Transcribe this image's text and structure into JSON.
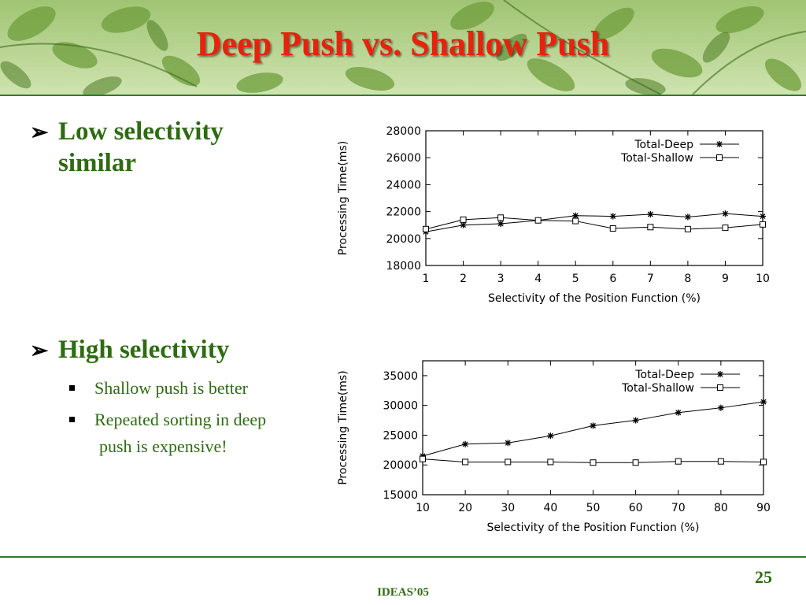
{
  "slide": {
    "title": "Deep Push vs. Shallow Push",
    "page_number": "25",
    "conference": "IDEAS’05"
  },
  "bullets": {
    "low": {
      "line1": "Low selectivity",
      "line2": "similar"
    },
    "high": {
      "label": "High selectivity"
    },
    "sub": [
      {
        "line1": "Shallow push is better"
      },
      {
        "line1": "Repeated sorting in deep",
        "line2": "push is expensive!"
      }
    ]
  },
  "colors": {
    "title": "#e8220c",
    "bullet_text": "#2e6b12",
    "rule": "#2e7d32"
  },
  "icons": {
    "bullet_main": "arrow-bullet-icon",
    "bullet_sub": "square-bullet-icon"
  },
  "chart_data": [
    {
      "type": "line",
      "title": "",
      "xlabel": "Selectivity of the Position Function (%)",
      "ylabel": "Processing Time(ms)",
      "x": [
        1,
        2,
        3,
        4,
        5,
        6,
        7,
        8,
        9,
        10
      ],
      "xlim": [
        1,
        10
      ],
      "ylim": [
        18000,
        28000
      ],
      "xticks": [
        1,
        2,
        3,
        4,
        5,
        6,
        7,
        8,
        9,
        10
      ],
      "yticks": [
        18000,
        20000,
        22000,
        24000,
        26000,
        28000
      ],
      "legend": "top-right",
      "series": [
        {
          "name": "Total-Deep",
          "marker": "star",
          "values": [
            20500,
            21000,
            21100,
            21350,
            21700,
            21650,
            21800,
            21600,
            21850,
            21650
          ]
        },
        {
          "name": "Total-Shallow",
          "marker": "square",
          "values": [
            20700,
            21400,
            21550,
            21350,
            21300,
            20750,
            20850,
            20700,
            20800,
            21050
          ]
        }
      ]
    },
    {
      "type": "line",
      "title": "",
      "xlabel": "Selectivity of the Position Function (%)",
      "ylabel": "Processing Time(ms)",
      "x": [
        10,
        20,
        30,
        40,
        50,
        60,
        70,
        80,
        90
      ],
      "xlim": [
        10,
        90
      ],
      "ylim": [
        15000,
        37500
      ],
      "xticks": [
        10,
        20,
        30,
        40,
        50,
        60,
        70,
        80,
        90
      ],
      "yticks": [
        15000,
        20000,
        25000,
        30000,
        35000
      ],
      "legend": "top-right",
      "series": [
        {
          "name": "Total-Deep",
          "marker": "star",
          "values": [
            21500,
            23500,
            23700,
            24900,
            26600,
            27500,
            28800,
            29600,
            30600
          ]
        },
        {
          "name": "Total-Shallow",
          "marker": "square",
          "values": [
            21000,
            20500,
            20500,
            20500,
            20400,
            20400,
            20600,
            20600,
            20500
          ]
        }
      ]
    }
  ]
}
